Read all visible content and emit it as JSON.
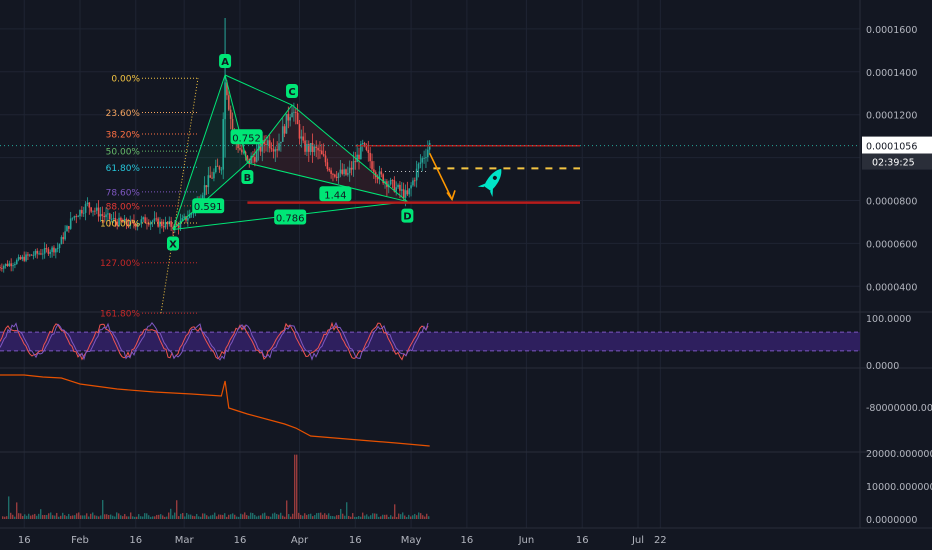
{
  "colors": {
    "background": "#131722",
    "grid": "#1f2433",
    "axis_text": "#b2b5be",
    "candle_up": "#26a69a",
    "candle_down": "#ef5350",
    "pattern": "#00e676",
    "last_price_bg": "#ffffff",
    "last_price_text": "#131722",
    "rsi_band": "#2e1f5e",
    "rsi_line1": "#ef5350",
    "rsi_line2": "#7e57c2",
    "obv_line": "#e65100",
    "target_arrow": "#ff9800",
    "rocket": "#00e5c8",
    "red_level": "#b71c1c"
  },
  "time_axis": {
    "labels": [
      "16",
      "Feb",
      "16",
      "Mar",
      "16",
      "Apr",
      "16",
      "May",
      "16",
      "Jun",
      "16",
      "Jul",
      "22"
    ],
    "day_index": [
      -15,
      0,
      15,
      28,
      43,
      59,
      74,
      89,
      104,
      120,
      135,
      150,
      156
    ]
  },
  "price_pane": {
    "ticks": [
      "0.0001600",
      "0.0001400",
      "0.0001200",
      "0.0001000",
      "0.0000800",
      "0.0000600",
      "0.0000400"
    ],
    "tick_values": [
      0.00016,
      0.00014,
      0.00012,
      0.0001,
      8e-05,
      6e-05,
      4e-05
    ],
    "last_price": "0.0001056",
    "last_price_value": 0.0001056,
    "countdown": "02:39:25",
    "fib_levels": [
      {
        "label": "0.00%",
        "color": "#f4c542",
        "value": 0.000137
      },
      {
        "label": "23.60%",
        "color": "#f4a460",
        "value": 0.000121
      },
      {
        "label": "38.20%",
        "color": "#ff7043",
        "value": 0.000111
      },
      {
        "label": "50.00%",
        "color": "#66bb6a",
        "value": 0.000103
      },
      {
        "label": "61.80%",
        "color": "#26c6da",
        "value": 9.55e-05
      },
      {
        "label": "78.60%",
        "color": "#7e57c2",
        "value": 8.4e-05
      },
      {
        "label": "88.00%",
        "color": "#e53935",
        "value": 7.75e-05
      },
      {
        "label": "100.00%",
        "color": "#f4c542",
        "value": 6.95e-05
      },
      {
        "label": "127.00%",
        "color": "#c62828",
        "value": 5.1e-05
      },
      {
        "label": "161.80%",
        "color": "#c62828",
        "value": 2.75e-05
      }
    ],
    "pattern_points": [
      {
        "label": "X",
        "day": 25,
        "value": 6.65e-05
      },
      {
        "label": "A",
        "day": 39,
        "value": 0.0001385
      },
      {
        "label": "B",
        "day": 45,
        "value": 9.75e-05
      },
      {
        "label": "C",
        "day": 57,
        "value": 0.0001245
      },
      {
        "label": "D",
        "day": 88,
        "value": 7.95e-05
      }
    ],
    "ratios": [
      "0.752",
      "0.591",
      "1.44",
      "0.786"
    ]
  },
  "rsi_pane": {
    "ticks": [
      "100.0000",
      "0.0000"
    ],
    "tick_values": [
      100,
      0
    ]
  },
  "obv_pane": {
    "ticks": [
      "-80000000.0000"
    ],
    "tick_values": [
      -80000000
    ]
  },
  "volume_pane": {
    "ticks": [
      "20000.0000000",
      "10000.0000000",
      "0.0000000"
    ],
    "tick_values": [
      20000,
      10000,
      0
    ]
  },
  "chart_data": {
    "type": "line",
    "note_series": "price candles approximated",
    "x": [
      -22,
      -18,
      -14,
      -10,
      -6,
      -2,
      2,
      6,
      10,
      14,
      18,
      22,
      26,
      30,
      34,
      38,
      39,
      41,
      43,
      45,
      47,
      50,
      53,
      57,
      60,
      64,
      68,
      72,
      76,
      80,
      84,
      88,
      91,
      94
    ],
    "series": [
      {
        "values": [
          4.9e-05,
          5.1e-05,
          5.4e-05,
          5.6e-05,
          5.8e-05,
          7.2e-05,
          7.8e-05,
          7.3e-05,
          7e-05,
          6.9e-05,
          7.1e-05,
          6.9e-05,
          6.8e-05,
          7.4e-05,
          8.8e-05,
          9.7e-05,
          0.0001385,
          0.000112,
          0.000104,
          9.8e-05,
          0.000101,
          0.000108,
          0.000105,
          0.000124,
          0.000105,
          0.000103,
          9.3e-05,
          9.2e-05,
          0.000105,
          9.2e-05,
          8.7e-05,
          8.2e-05,
          9.6e-05,
          0.000106
        ]
      }
    ]
  }
}
